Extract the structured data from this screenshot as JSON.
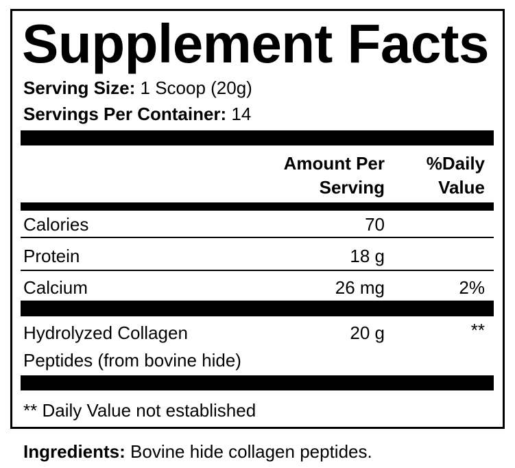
{
  "title": "Supplement Facts",
  "serving": {
    "size_label": "Serving Size:",
    "size_value": " 1 Scoop (20g)",
    "per_container_label": "Servings Per Container:",
    "per_container_value": " 14"
  },
  "header": {
    "amount_line1": "Amount Per",
    "amount_line2": "Serving",
    "dv_line1": "%Daily",
    "dv_line2": "Value"
  },
  "rows": [
    {
      "name": "Calories",
      "amount": "70",
      "dv": ""
    },
    {
      "name": "Protein",
      "amount": "18 g",
      "dv": ""
    },
    {
      "name": "Calcium",
      "amount": "26 mg",
      "dv": "2%"
    },
    {
      "name_line1": "Hydrolyzed Collagen",
      "name_line2": "Peptides (from bovine hide)",
      "amount": "20 g",
      "dv": "**"
    }
  ],
  "footnote": "** Daily Value not established",
  "ingredients": {
    "label": "Ingredients:",
    "value": " Bovine hide collagen peptides."
  }
}
